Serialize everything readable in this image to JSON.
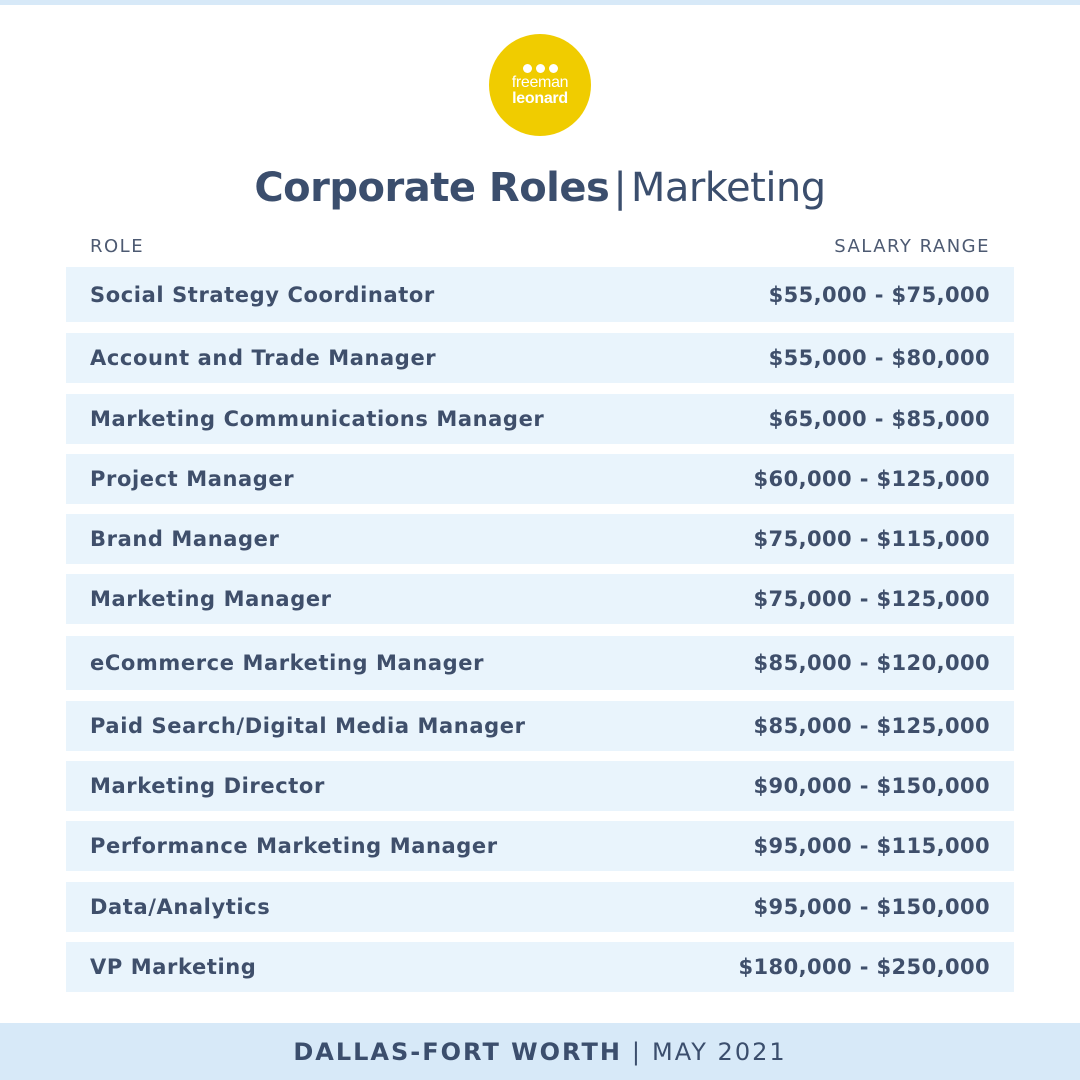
{
  "logo": {
    "line1": "freeman",
    "line2": "leonard",
    "color": "#f0cc00"
  },
  "title": {
    "bold": "Corporate Roles",
    "separator": "|",
    "light": "Marketing"
  },
  "columns": {
    "role": "ROLE",
    "salary": "SALARY RANGE"
  },
  "rows": [
    {
      "role": "Social Strategy Coordinator",
      "salary": "$55,000 - $75,000"
    },
    {
      "role": "Account and Trade Manager",
      "salary": "$55,000 - $80,000"
    },
    {
      "role": "Marketing Communications Manager",
      "salary": "$65,000 - $85,000"
    },
    {
      "role": "Project Manager",
      "salary": "$60,000 - $125,000"
    },
    {
      "role": "Brand Manager",
      "salary": "$75,000 - $115,000"
    },
    {
      "role": "Marketing Manager",
      "salary": "$75,000 - $125,000"
    },
    {
      "role": "eCommerce Marketing Manager",
      "salary": "$85,000 - $120,000"
    },
    {
      "role": "Paid Search/Digital Media Manager",
      "salary": "$85,000 - $125,000"
    },
    {
      "role": "Marketing Director",
      "salary": "$90,000 - $150,000"
    },
    {
      "role": "Performance Marketing Manager",
      "salary": "$95,000 - $115,000"
    },
    {
      "role": "Data/Analytics",
      "salary": "$95,000 - $150,000"
    },
    {
      "role": "VP Marketing",
      "salary": "$180,000 - $250,000"
    }
  ],
  "footer": {
    "city": "DALLAS-FORT WORTH",
    "separator": "|",
    "date": "MAY 2021"
  },
  "colors": {
    "band": "#d7e9f8",
    "row_bg": "#e9f4fc",
    "text": "#3b4e6d"
  }
}
